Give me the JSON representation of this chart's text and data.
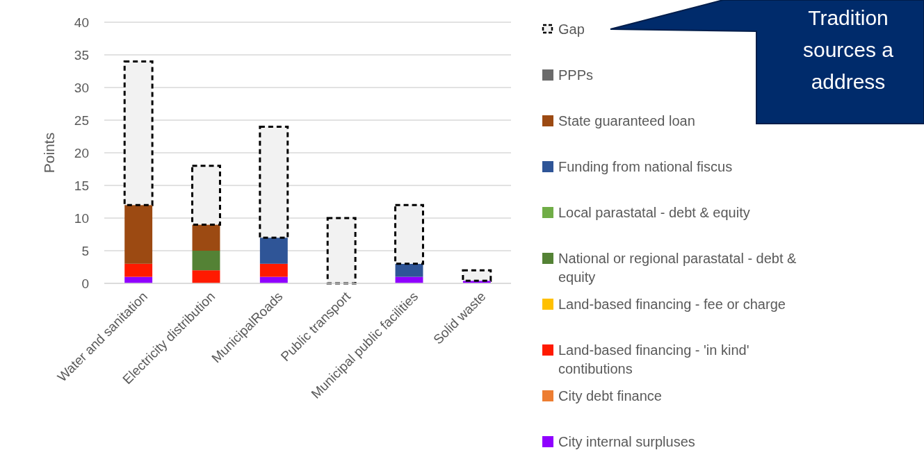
{
  "chart_data": {
    "type": "bar",
    "stacked": true,
    "ylabel": "Points",
    "categories": [
      "Water and sanitation",
      "Electricity distribution",
      "MunicipalRoads",
      "Public transport",
      "Municipal public facilities",
      "Solid waste"
    ],
    "ylim": [
      0,
      40
    ],
    "yticks": [
      0,
      5,
      10,
      15,
      20,
      25,
      30,
      35,
      40
    ],
    "grid": "y",
    "legend": "right",
    "series": [
      {
        "name": "City internal surpluses",
        "color": "#8f00ff",
        "values": [
          1,
          null,
          1,
          null,
          1,
          0.4
        ]
      },
      {
        "name": "City debt finance",
        "color": "#ed7d31",
        "values": [
          null,
          null,
          null,
          null,
          null,
          null
        ]
      },
      {
        "name": "Land-based financing - 'in kind' contibutions",
        "color": "#ff1a00",
        "values": [
          2,
          2,
          2,
          null,
          null,
          null
        ]
      },
      {
        "name": "Land-based financing  - fee or charge",
        "color": "#ffc000",
        "values": [
          null,
          null,
          null,
          null,
          null,
          null
        ]
      },
      {
        "name": "National or regional parastatal - debt & equity",
        "color": "#548235",
        "values": [
          null,
          3,
          null,
          null,
          null,
          null
        ]
      },
      {
        "name": "Local parastatal - debt & equity",
        "color": "#70ad47",
        "values": [
          null,
          null,
          null,
          null,
          null,
          null
        ]
      },
      {
        "name": "Funding from national fiscus",
        "color": "#2f5597",
        "values": [
          null,
          null,
          4,
          null,
          2,
          null
        ]
      },
      {
        "name": "State guaranteed loan",
        "color": "#9c4a12",
        "values": [
          9,
          4,
          null,
          null,
          null,
          null
        ]
      },
      {
        "name": "PPPs",
        "color": "#6b6b6b",
        "values": [
          null,
          null,
          null,
          null,
          null,
          null
        ]
      },
      {
        "name": "Gap",
        "color": "#f2f2f2",
        "line_style": "dashed",
        "values": [
          22,
          9,
          17,
          10,
          9,
          1.6
        ]
      }
    ],
    "annotations": [
      "Tradition",
      "sources a",
      "address"
    ]
  }
}
